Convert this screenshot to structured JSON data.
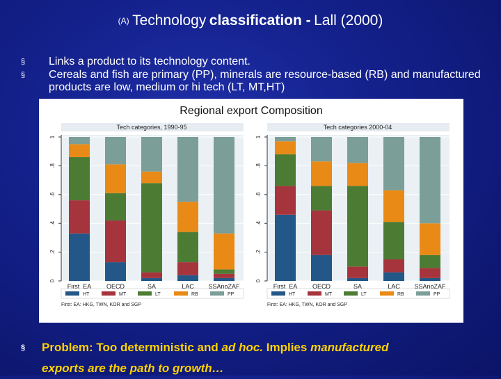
{
  "slide": {
    "title_tag": "(A)",
    "title_main": "Technology",
    "title_bold": "classification -",
    "title_source": "Lall (2000)",
    "bullets": [
      "Links a product to its technology content.",
      "Cereals and fish are primary (PP), minerals are resource-based (RB) and manufactured products are low, medium or hi tech (LT, MT,HT)"
    ],
    "bottom_bullet": {
      "prefix": "Problem: Too deterministic and",
      "italic_phrase": "ad hoc.",
      "middle": "Implies",
      "italic_word": "manufactured",
      "line2_italic": "exports are the path to growth…"
    },
    "bullet_mark": "§"
  },
  "chart_data": {
    "type": "bar",
    "stacked": true,
    "title": "Regional export Composition",
    "note": "First: EA: HKG, TWN, KOR and SGP",
    "ylim": [
      0,
      1
    ],
    "yticks": [
      "0",
      ".2",
      ".4",
      ".6",
      ".8",
      "1"
    ],
    "legend": [
      "HT",
      "MT",
      "LT",
      "RB",
      "PP"
    ],
    "colors": {
      "HT": "#235787",
      "MT": "#a6343c",
      "LT": "#4c7c34",
      "RB": "#ea8a16",
      "PP": "#7b9e98"
    },
    "panels": [
      {
        "subtitle": "Tech categories, 1990-95",
        "categories": [
          "First_EA",
          "OECD",
          "SA",
          "LAC",
          "SSAnoZAF"
        ],
        "series": [
          {
            "name": "HT",
            "values": [
              0.33,
              0.13,
              0.02,
              0.04,
              0.02
            ]
          },
          {
            "name": "MT",
            "values": [
              0.23,
              0.29,
              0.04,
              0.09,
              0.03
            ]
          },
          {
            "name": "LT",
            "values": [
              0.3,
              0.19,
              0.62,
              0.21,
              0.03
            ]
          },
          {
            "name": "RB",
            "values": [
              0.09,
              0.2,
              0.08,
              0.21,
              0.25
            ]
          },
          {
            "name": "PP",
            "values": [
              0.05,
              0.19,
              0.24,
              0.45,
              0.67
            ]
          }
        ]
      },
      {
        "subtitle": "Tech categories 2000-04",
        "categories": [
          "First_EA",
          "OECD",
          "SA",
          "LAC",
          "SSAnoZAF"
        ],
        "series": [
          {
            "name": "HT",
            "values": [
              0.46,
              0.18,
              0.02,
              0.06,
              0.02
            ]
          },
          {
            "name": "MT",
            "values": [
              0.2,
              0.31,
              0.08,
              0.09,
              0.07
            ]
          },
          {
            "name": "LT",
            "values": [
              0.22,
              0.17,
              0.56,
              0.26,
              0.09
            ]
          },
          {
            "name": "RB",
            "values": [
              0.09,
              0.17,
              0.16,
              0.22,
              0.22
            ]
          },
          {
            "name": "PP",
            "values": [
              0.03,
              0.17,
              0.18,
              0.37,
              0.6
            ]
          }
        ]
      }
    ]
  }
}
